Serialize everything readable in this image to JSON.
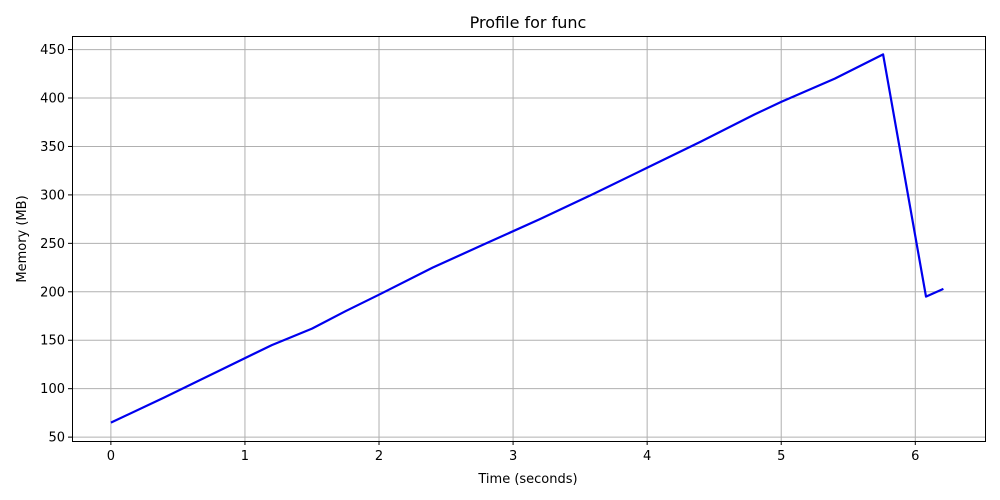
{
  "chart_data": {
    "type": "line",
    "title": "Profile for func",
    "xlabel": "Time (seconds)",
    "ylabel": "Memory (MB)",
    "xlim": [
      -0.29,
      6.52
    ],
    "ylim": [
      46,
      464
    ],
    "xticks": [
      0,
      1,
      2,
      3,
      4,
      5,
      6
    ],
    "yticks": [
      50,
      100,
      150,
      200,
      250,
      300,
      350,
      400,
      450
    ],
    "grid": true,
    "series": [
      {
        "color": "#0000ee",
        "x": [
          0,
          0.4,
          0.8,
          1.2,
          1.5,
          1.75,
          2.0,
          2.4,
          2.8,
          3.2,
          3.6,
          4.0,
          4.4,
          4.8,
          5.0,
          5.4,
          5.76,
          6.08,
          6.21
        ],
        "y": [
          65,
          91,
          118,
          145,
          162,
          180,
          197,
          225,
          250,
          275,
          301,
          328,
          355,
          383,
          396,
          420,
          445,
          195,
          203
        ]
      }
    ]
  }
}
